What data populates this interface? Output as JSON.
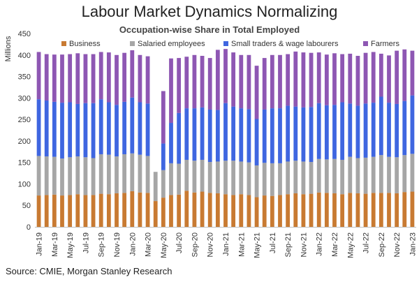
{
  "title": "Labour Market Dynamics Normalizing",
  "subtitle": "Occupation-wise Share in Total Employed",
  "source": "Source: CMIE, Morgan Stanley Research",
  "colors": {
    "business": "#C87A32",
    "salaried": "#A6A6A6",
    "traders": "#3F66E0",
    "farmers": "#8E57B3"
  },
  "chart_data": {
    "type": "bar",
    "stacked": true,
    "ylabel": "Millions",
    "ylim": [
      0,
      450
    ],
    "yticks": [
      0,
      50,
      100,
      150,
      200,
      250,
      300,
      350,
      400,
      450
    ],
    "legend": "top",
    "grid": false,
    "categories": [
      "Jan-19",
      "Feb-19",
      "Mar-19",
      "Apr-19",
      "May-19",
      "Jun-19",
      "Jul-19",
      "Aug-19",
      "Sep-19",
      "Oct-19",
      "Nov-19",
      "Dec-19",
      "Jan-20",
      "Feb-20",
      "Mar-20",
      "Apr-20",
      "May-20",
      "Jun-20",
      "Jul-20",
      "Aug-20",
      "Sep-20",
      "Oct-20",
      "Nov-20",
      "Dec-20",
      "Jan-21",
      "Feb-21",
      "Mar-21",
      "Apr-21",
      "May-21",
      "Jun-21",
      "Jul-21",
      "Aug-21",
      "Sep-21",
      "Oct-21",
      "Nov-21",
      "Dec-21",
      "Jan-22",
      "Feb-22",
      "Mar-22",
      "Apr-22",
      "May-22",
      "Jun-22",
      "Jul-22",
      "Aug-22",
      "Sep-22",
      "Oct-22",
      "Nov-22",
      "Dec-22",
      "Jan-23"
    ],
    "tick_labels": [
      "Jan-19",
      "Mar-19",
      "May-19",
      "Jul-19",
      "Sep-19",
      "Nov-19",
      "Jan-20",
      "Mar-20",
      "May-20",
      "Jul-20",
      "Sep-20",
      "Nov-20",
      "Jan-21",
      "Mar-21",
      "May-21",
      "Jul-21",
      "Sep-21",
      "Nov-21",
      "Jan-22",
      "Mar-22",
      "May-22",
      "Jul-22",
      "Sep-22",
      "Nov-22",
      "Jan-23"
    ],
    "series": [
      {
        "name": "Business",
        "key": "business",
        "values": [
          73,
          74,
          75,
          73,
          74,
          76,
          74,
          74,
          77,
          76,
          78,
          79,
          83,
          80,
          79,
          60,
          68,
          74,
          75,
          84,
          80,
          82,
          79,
          78,
          76,
          74,
          76,
          74,
          69,
          73,
          72,
          74,
          76,
          78,
          76,
          77,
          80,
          79,
          78,
          76,
          79,
          78,
          77,
          79,
          79,
          79,
          78,
          81,
          82
        ]
      },
      {
        "name": "Salaried employees",
        "key": "salaried",
        "values": [
          92,
          90,
          88,
          86,
          88,
          88,
          88,
          86,
          92,
          92,
          86,
          90,
          88,
          88,
          86,
          68,
          64,
          74,
          72,
          72,
          74,
          74,
          72,
          74,
          78,
          80,
          76,
          76,
          74,
          76,
          76,
          74,
          76,
          76,
          76,
          74,
          78,
          78,
          80,
          80,
          84,
          82,
          84,
          84,
          88,
          84,
          84,
          86,
          88
        ]
      },
      {
        "name": "Small traders & wage  labourers",
        "key": "traders",
        "values": [
          132,
          130,
          128,
          130,
          128,
          122,
          126,
          128,
          128,
          122,
          120,
          122,
          130,
          122,
          122,
          0,
          62,
          94,
          118,
          120,
          122,
          122,
          122,
          120,
          134,
          126,
          124,
          124,
          108,
          124,
          128,
          128,
          130,
          126,
          126,
          128,
          130,
          126,
          126,
          134,
          124,
          122,
          126,
          126,
          136,
          126,
          124,
          126,
          136
        ]
      },
      {
        "name": "Farmers",
        "key": "farmers",
        "values": [
          110,
          108,
          110,
          112,
          112,
          118,
          114,
          114,
          110,
          116,
          116,
          114,
          110,
          110,
          110,
          0,
          122,
          150,
          128,
          120,
          124,
          120,
          120,
          140,
          126,
          126,
          124,
          126,
          124,
          120,
          124,
          124,
          120,
          128,
          128,
          126,
          118,
          118,
          120,
          112,
          116,
          116,
          118,
          118,
          100,
          110,
          124,
          120,
          104
        ]
      }
    ]
  }
}
